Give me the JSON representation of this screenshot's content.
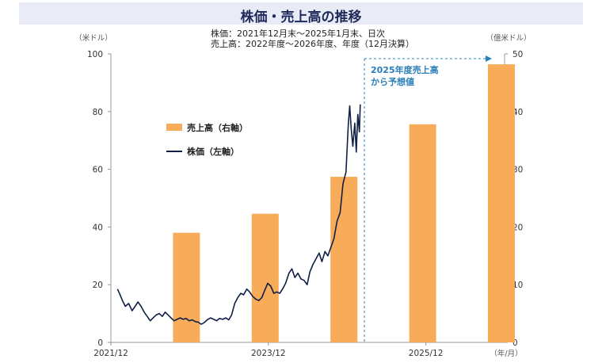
{
  "title": "株価・売上高の推移",
  "subtitle_lines": [
    "株価：2021年12月末～2025年1月末、日次",
    "売上高：2022年度～2026年度、年度（12月決算）"
  ],
  "chart_data": {
    "type": "bar+line",
    "left_unit": "（米ドル）",
    "right_unit": "（億米ドル）",
    "x_unit": "（年/月）",
    "left_ylim": [
      0,
      100
    ],
    "right_ylim": [
      0,
      50
    ],
    "left_ticks": [
      "0",
      "20",
      "40",
      "60",
      "80",
      "100"
    ],
    "right_ticks": [
      "0",
      "10",
      "20",
      "30",
      "40",
      "50"
    ],
    "x_ticks": [
      "2021/12",
      "2023/12",
      "2025/12"
    ],
    "x_range": [
      "2021-12",
      "2026-12"
    ],
    "grid": false,
    "legend_position": "upper-left",
    "bars": {
      "name": "売上高（右軸）",
      "color": "#f8ac59",
      "axis": "right",
      "categories": [
        "2022",
        "2023",
        "2024",
        "2025",
        "2026"
      ],
      "values": [
        19.0,
        22.3,
        28.7,
        37.8,
        48.2
      ],
      "center_months": [
        "2022-12",
        "2023-12",
        "2024-12",
        "2025-12",
        "2026-12"
      ]
    },
    "line": {
      "name": "株価（左軸）",
      "color": "#0f1f45",
      "axis": "left",
      "points": [
        [
          "2021-12-31",
          18.5
        ],
        [
          "2022-01-10",
          17.0
        ],
        [
          "2022-01-24",
          14.5
        ],
        [
          "2022-02-07",
          12.5
        ],
        [
          "2022-02-22",
          13.5
        ],
        [
          "2022-03-08",
          11.0
        ],
        [
          "2022-03-22",
          12.5
        ],
        [
          "2022-04-05",
          14.0
        ],
        [
          "2022-04-19",
          12.5
        ],
        [
          "2022-05-03",
          10.5
        ],
        [
          "2022-05-17",
          9.0
        ],
        [
          "2022-05-31",
          7.5
        ],
        [
          "2022-06-14",
          8.5
        ],
        [
          "2022-06-28",
          9.5
        ],
        [
          "2022-07-12",
          10.0
        ],
        [
          "2022-07-26",
          9.0
        ],
        [
          "2022-08-09",
          10.5
        ],
        [
          "2022-08-23",
          9.5
        ],
        [
          "2022-09-06",
          8.5
        ],
        [
          "2022-09-20",
          7.5
        ],
        [
          "2022-10-04",
          8.0
        ],
        [
          "2022-10-18",
          8.5
        ],
        [
          "2022-11-01",
          8.0
        ],
        [
          "2022-11-15",
          8.3
        ],
        [
          "2022-11-29",
          7.5
        ],
        [
          "2022-12-13",
          7.8
        ],
        [
          "2022-12-27",
          7.2
        ],
        [
          "2023-01-10",
          7.0
        ],
        [
          "2023-01-24",
          6.3
        ],
        [
          "2023-02-07",
          6.8
        ],
        [
          "2023-02-21",
          7.8
        ],
        [
          "2023-03-07",
          8.5
        ],
        [
          "2023-03-21",
          8.0
        ],
        [
          "2023-04-04",
          7.5
        ],
        [
          "2023-04-18",
          8.3
        ],
        [
          "2023-05-02",
          8.0
        ],
        [
          "2023-05-16",
          8.5
        ],
        [
          "2023-05-30",
          7.8
        ],
        [
          "2023-06-13",
          9.5
        ],
        [
          "2023-06-27",
          13.5
        ],
        [
          "2023-07-11",
          15.5
        ],
        [
          "2023-07-25",
          17.0
        ],
        [
          "2023-08-08",
          16.5
        ],
        [
          "2023-08-22",
          18.5
        ],
        [
          "2023-09-05",
          17.5
        ],
        [
          "2023-09-19",
          16.0
        ],
        [
          "2023-10-03",
          15.0
        ],
        [
          "2023-10-17",
          14.5
        ],
        [
          "2023-10-31",
          15.5
        ],
        [
          "2023-11-14",
          18.0
        ],
        [
          "2023-11-28",
          20.5
        ],
        [
          "2023-12-12",
          19.5
        ],
        [
          "2023-12-26",
          17.0
        ],
        [
          "2024-01-09",
          17.5
        ],
        [
          "2024-01-23",
          17.0
        ],
        [
          "2024-02-06",
          18.5
        ],
        [
          "2024-02-20",
          20.5
        ],
        [
          "2024-03-05",
          24.0
        ],
        [
          "2024-03-19",
          25.5
        ],
        [
          "2024-04-02",
          22.5
        ],
        [
          "2024-04-16",
          24.0
        ],
        [
          "2024-04-30",
          22.0
        ],
        [
          "2024-05-14",
          21.5
        ],
        [
          "2024-05-28",
          20.0
        ],
        [
          "2024-06-11",
          24.5
        ],
        [
          "2024-06-25",
          27.0
        ],
        [
          "2024-07-09",
          29.0
        ],
        [
          "2024-07-23",
          31.0
        ],
        [
          "2024-08-06",
          28.0
        ],
        [
          "2024-08-20",
          31.5
        ],
        [
          "2024-09-03",
          30.0
        ],
        [
          "2024-09-17",
          33.0
        ],
        [
          "2024-10-01",
          36.0
        ],
        [
          "2024-10-15",
          42.0
        ],
        [
          "2024-10-29",
          45.0
        ],
        [
          "2024-11-12",
          55.0
        ],
        [
          "2024-11-26",
          59.0
        ],
        [
          "2024-12-06",
          75.0
        ],
        [
          "2024-12-13",
          82.0
        ],
        [
          "2024-12-20",
          74.0
        ],
        [
          "2024-12-27",
          68.0
        ],
        [
          "2025-01-06",
          76.0
        ],
        [
          "2025-01-13",
          66.0
        ],
        [
          "2025-01-20",
          79.0
        ],
        [
          "2025-01-27",
          73.0
        ],
        [
          "2025-01-31",
          82.5
        ]
      ]
    },
    "annotation": {
      "text_lines": [
        "2025年度売上高",
        "から予想値"
      ],
      "color": "#2a7fb8"
    }
  }
}
